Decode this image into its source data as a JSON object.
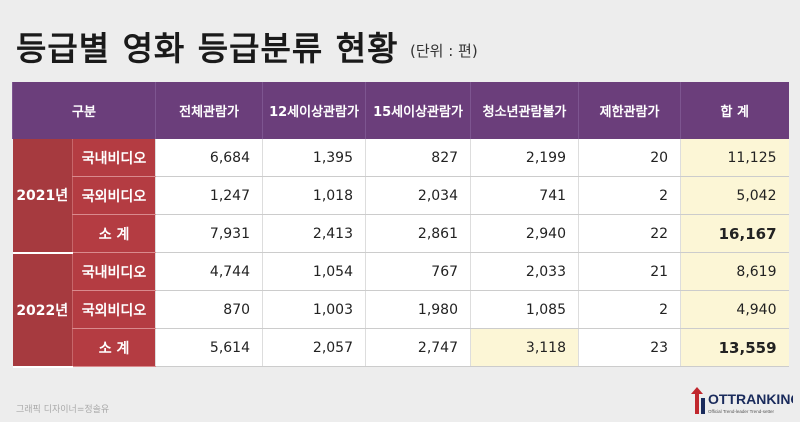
{
  "header": {
    "title": "등급별 영화 등급분류 현황",
    "unit": "(단위 : 편)"
  },
  "table": {
    "columns": [
      "구분",
      "전체관람가",
      "12세이상관람가",
      "15세이상관람가",
      "청소년관람불가",
      "제한관람가",
      "합 계"
    ],
    "groups": [
      {
        "year": "2021년",
        "rows": [
          {
            "label": "국내비디오",
            "cells": [
              "6,684",
              "1,395",
              "827",
              "2,199",
              "20",
              "11,125"
            ]
          },
          {
            "label": "국외비디오",
            "cells": [
              "1,247",
              "1,018",
              "2,034",
              "741",
              "2",
              "5,042"
            ]
          },
          {
            "label": "소 계",
            "cells": [
              "7,931",
              "2,413",
              "2,861",
              "2,940",
              "22",
              "16,167"
            ]
          }
        ]
      },
      {
        "year": "2022년",
        "rows": [
          {
            "label": "국내비디오",
            "cells": [
              "4,744",
              "1,054",
              "767",
              "2,033",
              "21",
              "8,619"
            ]
          },
          {
            "label": "국외비디오",
            "cells": [
              "870",
              "1,003",
              "1,980",
              "1,085",
              "2",
              "4,940"
            ]
          },
          {
            "label": "소 계",
            "cells": [
              "5,614",
              "2,057",
              "2,747",
              "3,118",
              "23",
              "13,559"
            ]
          }
        ]
      }
    ]
  },
  "footer": {
    "credit": "그래픽 디자이너=정솔유",
    "logo": "OTTRANKING",
    "tagline": "Official Trend-leader Trend-setter"
  }
}
